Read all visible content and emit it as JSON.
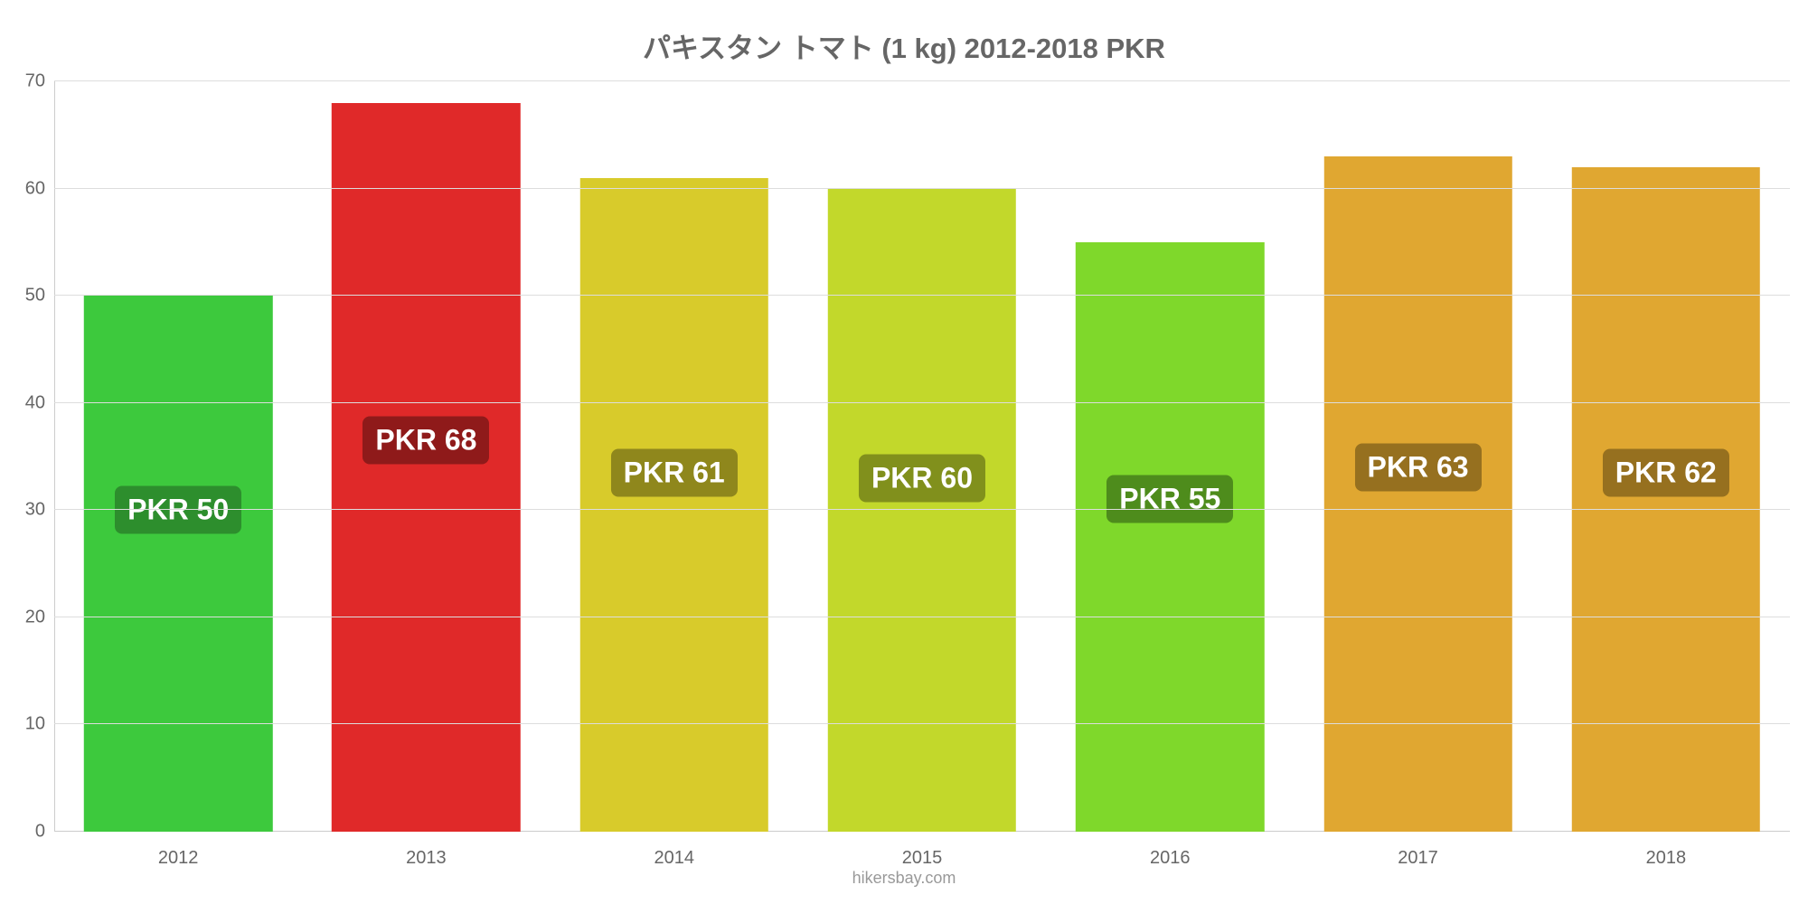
{
  "chart": {
    "type": "bar",
    "title": "パキスタン トマト (1 kg) 2012-2018 PKR",
    "title_fontsize": 31,
    "title_color": "#666666",
    "background_color": "#ffffff",
    "grid_color": "#dddddd",
    "axis_line_color": "#cccccc",
    "axis_label_color": "#666666",
    "axis_label_fontsize": 20,
    "ylim": [
      0,
      70
    ],
    "ytick_step": 10,
    "yticks": [
      0,
      10,
      20,
      30,
      40,
      50,
      60,
      70
    ],
    "categories": [
      "2012",
      "2013",
      "2014",
      "2015",
      "2016",
      "2017",
      "2018"
    ],
    "values": [
      50,
      68,
      61,
      60,
      55,
      63,
      62
    ],
    "bar_colors": [
      "#3dc93d",
      "#e02929",
      "#d8cb2b",
      "#c2d82b",
      "#7fd82b",
      "#e0a731",
      "#e0a731"
    ],
    "bar_labels": [
      "PKR 50",
      "PKR 68",
      "PKR 61",
      "PKR 60",
      "PKR 55",
      "PKR 63",
      "PKR 62"
    ],
    "bar_label_bg": [
      "#2d8e2d",
      "#8f1a1a",
      "#8f871c",
      "#81901c",
      "#4e8c1c",
      "#96701f",
      "#96701f"
    ],
    "bar_label_centers_y": [
      30,
      36.5,
      33.5,
      33,
      31,
      34,
      33.5
    ],
    "bar_label_fontsize": 32,
    "bar_label_color": "#ffffff",
    "bar_width": 0.76,
    "attribution": "hikersbay.com",
    "attribution_color": "#999999",
    "attribution_fontsize": 18
  }
}
